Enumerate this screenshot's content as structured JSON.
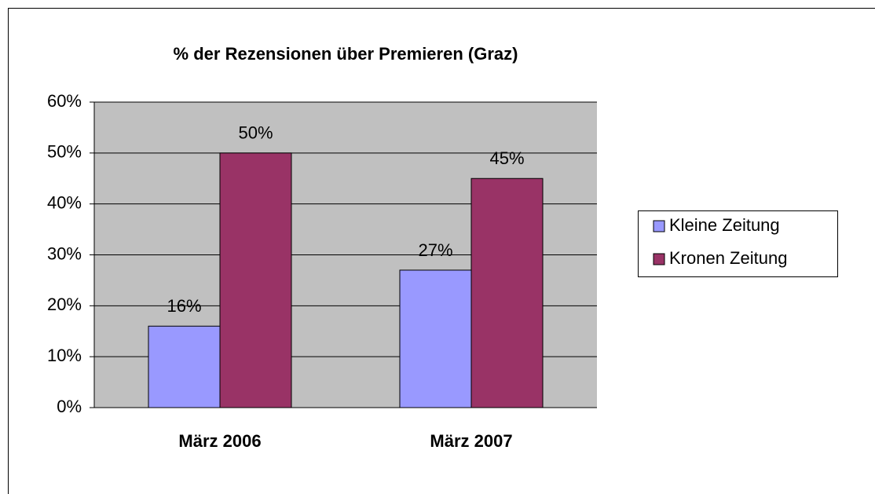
{
  "chart_data": {
    "type": "bar",
    "title": "% der Rezensionen über Premieren (Graz)",
    "categories": [
      "März 2006",
      "März 2007"
    ],
    "series": [
      {
        "name": "Kleine Zeitung",
        "color": "#9999ff",
        "values": [
          16,
          27
        ],
        "value_labels": [
          "16%",
          "27%"
        ]
      },
      {
        "name": "Kronen Zeitung",
        "color": "#993366",
        "values": [
          50,
          45
        ],
        "value_labels": [
          "50%",
          "45%"
        ]
      }
    ],
    "ylim": [
      0,
      60
    ],
    "yticks": [
      {
        "value": 0,
        "label": "0%"
      },
      {
        "value": 10,
        "label": "10%"
      },
      {
        "value": 20,
        "label": "20%"
      },
      {
        "value": 30,
        "label": "30%"
      },
      {
        "value": 40,
        "label": "40%"
      },
      {
        "value": 50,
        "label": "50%"
      },
      {
        "value": 60,
        "label": "60%"
      }
    ],
    "grid": true,
    "legend": "right"
  }
}
